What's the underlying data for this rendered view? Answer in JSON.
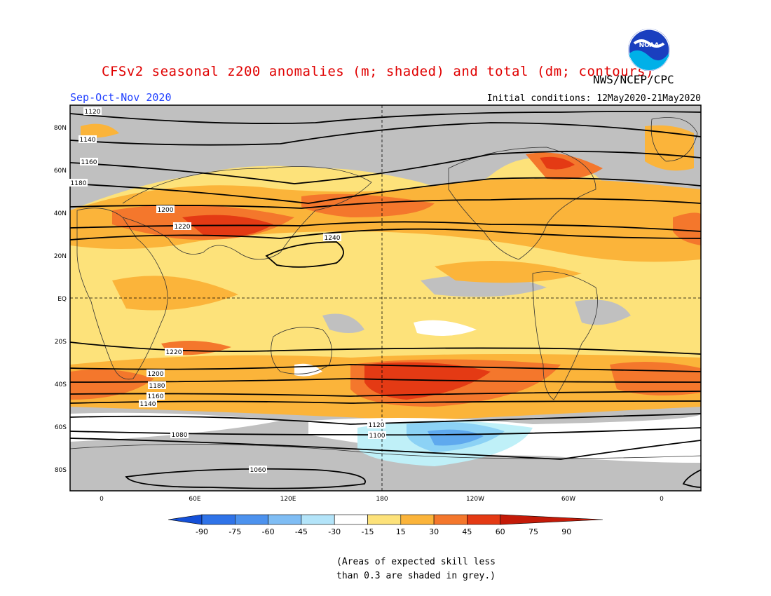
{
  "header": {
    "title": "CFSv2 seasonal z200 anomalies (m; shaded) and total (dm; contours)",
    "season": "Sep-Oct-Nov 2020",
    "agency": "NWS/NCEP/CPC",
    "initial_conditions": "Initial conditions: 12May2020-21May2020",
    "logo_text": "NOAA"
  },
  "map": {
    "lat_labels": [
      "80N",
      "60N",
      "40N",
      "20N",
      "EQ",
      "20S",
      "40S",
      "60S",
      "80S"
    ],
    "lon_labels": [
      "0",
      "60E",
      "120E",
      "180",
      "120W",
      "60W",
      "0"
    ],
    "contours": [
      {
        "label": "1120"
      },
      {
        "label": "1140"
      },
      {
        "label": "1160"
      },
      {
        "label": "1180"
      },
      {
        "label": "1200"
      },
      {
        "label": "1220"
      },
      {
        "label": "1240"
      },
      {
        "label": "1220"
      },
      {
        "label": "1200"
      },
      {
        "label": "1180"
      },
      {
        "label": "1160"
      },
      {
        "label": "1140"
      },
      {
        "label": "1120"
      },
      {
        "label": "1100"
      },
      {
        "label": "1080"
      },
      {
        "label": "1060"
      }
    ],
    "colors": {
      "grey_skill": "#c0c0c0",
      "level_15_30": "#fde27a",
      "level_30_45": "#fbb43a",
      "level_45_60": "#f4772c",
      "level_60_75": "#e43a14",
      "neg_15": "#ffffff",
      "neg_30": "#bff0f8",
      "neg_45": "#8cd2f5",
      "neg_60": "#5fa9ee"
    }
  },
  "colorbar": {
    "levels": [
      "-90",
      "-75",
      "-60",
      "-45",
      "-30",
      "-15",
      "15",
      "30",
      "45",
      "60",
      "75",
      "90"
    ],
    "colors": [
      "#1450d8",
      "#2f73e8",
      "#4c92ee",
      "#7fbdf4",
      "#b3e4f9",
      "#ffffff",
      "#fde27a",
      "#fbb43a",
      "#f4772c",
      "#e43a14",
      "#c41a08"
    ]
  },
  "note": {
    "line1": "(Areas of expected skill less",
    "line2": "than 0.3 are shaded in grey.)"
  }
}
